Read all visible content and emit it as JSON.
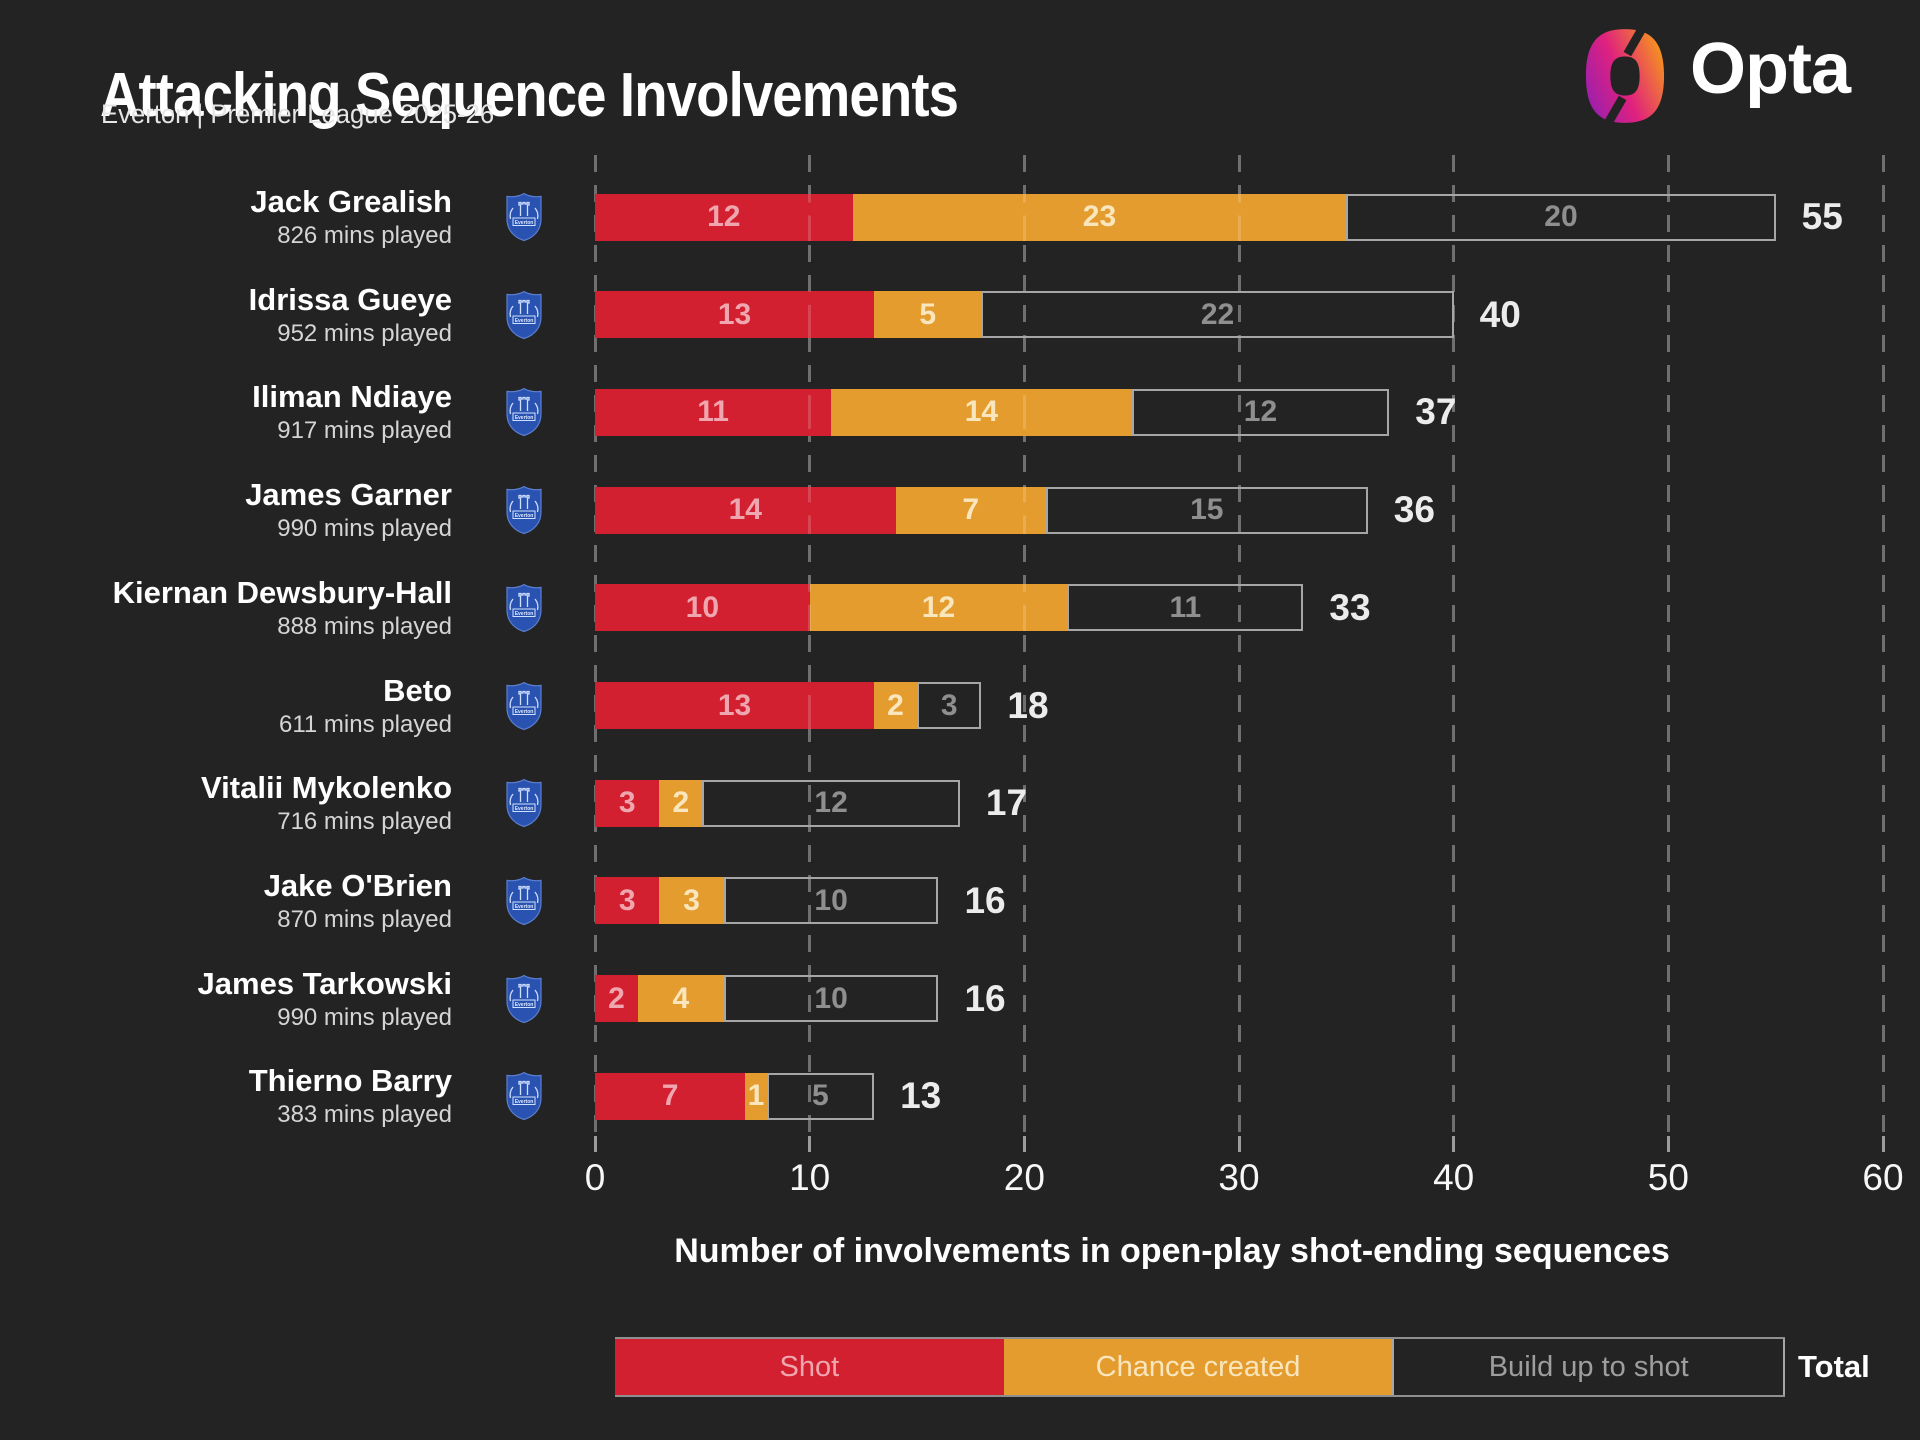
{
  "header": {
    "title": "Attacking Sequence Involvements",
    "subtitle": "Everton | Premier League 2025-26",
    "brand": "Opta"
  },
  "chart_data": {
    "type": "bar",
    "stacked": true,
    "orientation": "horizontal",
    "title": "Attacking Sequence Involvements",
    "subtitle": "Everton | Premier League 2025-26",
    "xlabel": "Number of involvements in open-play shot-ending sequences",
    "xlim": [
      0,
      60
    ],
    "xticks": [
      0,
      10,
      20,
      30,
      40,
      50,
      60
    ],
    "grid": "dashed-vertical",
    "legend_position": "bottom",
    "categories": [
      "Jack Grealish",
      "Idrissa Gueye",
      "Iliman Ndiaye",
      "James Garner",
      "Kiernan Dewsbury-Hall",
      "Beto",
      "Vitalii Mykolenko",
      "Jake O'Brien",
      "James Tarkowski",
      "Thierno Barry"
    ],
    "mins_played": [
      "826 mins played",
      "952 mins played",
      "917 mins played",
      "990 mins played",
      "888 mins played",
      "611 mins played",
      "716 mins played",
      "870 mins played",
      "990 mins played",
      "383 mins played"
    ],
    "series": [
      {
        "name": "Shot",
        "values": [
          12,
          13,
          11,
          14,
          10,
          13,
          3,
          3,
          2,
          7
        ]
      },
      {
        "name": "Chance created",
        "values": [
          23,
          5,
          14,
          7,
          12,
          2,
          2,
          3,
          4,
          1
        ]
      },
      {
        "name": "Build up to shot",
        "values": [
          20,
          22,
          12,
          15,
          11,
          3,
          12,
          10,
          10,
          5
        ]
      }
    ],
    "totals": [
      55,
      40,
      37,
      36,
      33,
      18,
      17,
      16,
      16,
      13
    ]
  },
  "legend": {
    "items": [
      "Shot",
      "Chance created",
      "Build up to shot"
    ],
    "total_label": "Total"
  },
  "colors": {
    "background": "#232323",
    "shot": "#d22031",
    "chance_created": "#e59c2f",
    "build_up_border": "#a6a6a6",
    "gridline": "#6f6f6f",
    "shot_value_label": "#f0a6ae",
    "chance_value_label": "#f9e6bd",
    "build_up_value_label": "#8f8f8f",
    "text": "#ffffff",
    "badge_blue": "#2a52b0",
    "opta_gradient": [
      "#9b1fae",
      "#e0217e",
      "#f6951d"
    ]
  },
  "icons": {
    "club_badge": "everton-crest-icon",
    "brand_logo": "opta-logo-icon"
  }
}
